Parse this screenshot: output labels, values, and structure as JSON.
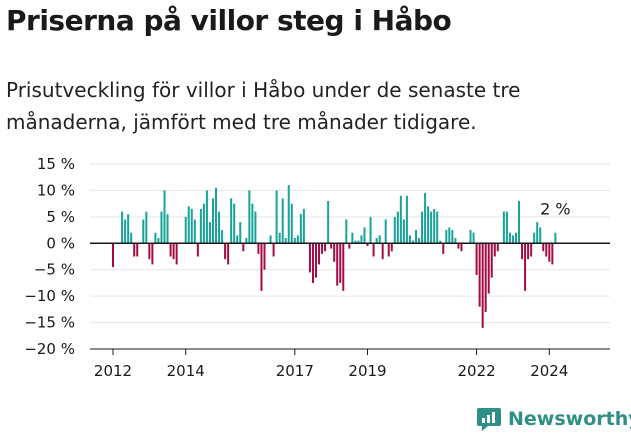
{
  "header": {
    "title": "Priserna på villor steg i Håbo",
    "subtitle": "Prisutveckling för villor i Håbo under de senaste tre månaderna, jämfört med tre månader tidigare."
  },
  "brand": {
    "name": "Newsworthy"
  },
  "colors": {
    "positive": "#17a398",
    "negative": "#a50a45",
    "axis": "#1a1a1a",
    "grid": "#e6e6e6"
  },
  "chart_data": {
    "type": "bar",
    "ylim": [
      -20,
      15
    ],
    "y_ticks": [
      15,
      10,
      5,
      0,
      -5,
      -10,
      -15,
      -20
    ],
    "y_tick_labels": [
      "15 %",
      "10 %",
      "5 %",
      "0 %",
      "−5 %",
      "−10 %",
      "−15 %",
      "−20 %"
    ],
    "x_ticks": [
      {
        "label": "2012",
        "year": 2012
      },
      {
        "label": "2014",
        "year": 2014
      },
      {
        "label": "2017",
        "year": 2017
      },
      {
        "label": "2019",
        "year": 2019
      },
      {
        "label": "2022",
        "year": 2022
      },
      {
        "label": "2024",
        "year": 2024
      }
    ],
    "x_start": "2012-01",
    "annotation": "2 %",
    "values": [
      -4.5,
      0,
      0,
      6,
      4.5,
      5.5,
      2,
      -2.5,
      -2.5,
      0,
      4.5,
      6,
      -3,
      -4,
      2,
      1,
      6,
      10,
      5.5,
      -2.5,
      -3,
      -4,
      0,
      0,
      5,
      7,
      6.5,
      4.5,
      -2.5,
      6.5,
      7.5,
      10,
      4,
      8.5,
      10.5,
      6,
      2.5,
      -3,
      -4,
      8.5,
      7.5,
      1.5,
      4,
      -1.5,
      1,
      10,
      7.5,
      6,
      -2,
      -9,
      -5,
      0,
      1.5,
      -2.5,
      10,
      2,
      8.5,
      1,
      11,
      7.5,
      1,
      1.5,
      5.5,
      6.5,
      0,
      -5.5,
      -7.5,
      -6.5,
      -4,
      -2,
      -1.5,
      8,
      -1,
      -3.5,
      -8,
      -7.5,
      -9,
      4.5,
      -1,
      2,
      0.5,
      0.5,
      1.5,
      3,
      -0.5,
      5,
      -2.5,
      1,
      1.5,
      -3,
      4.5,
      -2.5,
      -1.5,
      5,
      6,
      9,
      4.5,
      9,
      1.5,
      0.5,
      2.5,
      1,
      6,
      9.5,
      7,
      6,
      6.5,
      6,
      0.5,
      -2,
      2.5,
      3,
      2.5,
      1,
      -1,
      -1.5,
      0,
      0,
      2.5,
      2,
      -6,
      -12,
      -16,
      -13,
      -9.5,
      -6.5,
      -2.5,
      -1.5,
      0,
      6,
      6,
      2,
      1.5,
      2,
      8,
      -3,
      -9,
      -3,
      -2.5,
      2,
      4,
      3,
      -1.5,
      -2.5,
      -3.5,
      -4,
      2
    ]
  }
}
